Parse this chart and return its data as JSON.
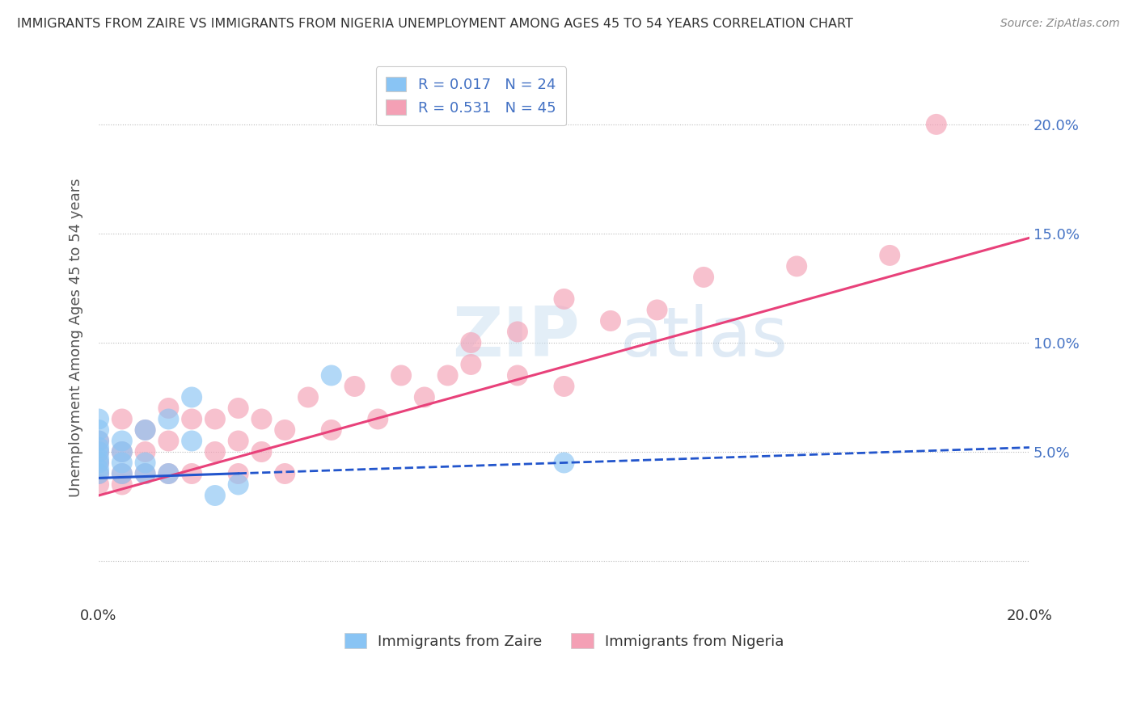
{
  "title": "IMMIGRANTS FROM ZAIRE VS IMMIGRANTS FROM NIGERIA UNEMPLOYMENT AMONG AGES 45 TO 54 YEARS CORRELATION CHART",
  "source": "Source: ZipAtlas.com",
  "ylabel": "Unemployment Among Ages 45 to 54 years",
  "xlim": [
    0.0,
    0.2
  ],
  "ylim": [
    -0.02,
    0.225
  ],
  "x_ticks": [
    0.0,
    0.05,
    0.1,
    0.15,
    0.2
  ],
  "x_tick_labels": [
    "0.0%",
    "",
    "",
    "",
    "20.0%"
  ],
  "y_ticks": [
    0.0,
    0.05,
    0.1,
    0.15,
    0.2
  ],
  "y_tick_labels_left": [
    "",
    "",
    "",
    "",
    ""
  ],
  "y_tick_labels_right": [
    "",
    "5.0%",
    "10.0%",
    "15.0%",
    "20.0%"
  ],
  "zaire_color": "#89c4f4",
  "nigeria_color": "#f4a0b5",
  "zaire_R": "0.017",
  "zaire_N": "24",
  "nigeria_R": "0.531",
  "nigeria_N": "45",
  "zaire_line_color": "#2255cc",
  "nigeria_line_color": "#e8417a",
  "watermark_zip": "ZIP",
  "watermark_atlas": "atlas",
  "zaire_scatter_x": [
    0.0,
    0.0,
    0.0,
    0.0,
    0.0,
    0.0,
    0.0,
    0.0,
    0.0,
    0.005,
    0.005,
    0.005,
    0.005,
    0.01,
    0.01,
    0.01,
    0.015,
    0.015,
    0.02,
    0.02,
    0.025,
    0.03,
    0.05,
    0.1
  ],
  "zaire_scatter_y": [
    0.04,
    0.042,
    0.045,
    0.047,
    0.05,
    0.052,
    0.055,
    0.06,
    0.065,
    0.04,
    0.045,
    0.05,
    0.055,
    0.04,
    0.045,
    0.06,
    0.04,
    0.065,
    0.055,
    0.075,
    0.03,
    0.035,
    0.085,
    0.045
  ],
  "nigeria_scatter_x": [
    0.0,
    0.0,
    0.0,
    0.0,
    0.0,
    0.005,
    0.005,
    0.005,
    0.005,
    0.01,
    0.01,
    0.01,
    0.015,
    0.015,
    0.015,
    0.02,
    0.02,
    0.025,
    0.025,
    0.03,
    0.03,
    0.03,
    0.035,
    0.035,
    0.04,
    0.04,
    0.045,
    0.05,
    0.055,
    0.06,
    0.065,
    0.07,
    0.075,
    0.08,
    0.08,
    0.09,
    0.09,
    0.1,
    0.1,
    0.11,
    0.12,
    0.13,
    0.15,
    0.17,
    0.18
  ],
  "nigeria_scatter_y": [
    0.035,
    0.04,
    0.045,
    0.05,
    0.055,
    0.035,
    0.04,
    0.05,
    0.065,
    0.04,
    0.05,
    0.06,
    0.04,
    0.055,
    0.07,
    0.04,
    0.065,
    0.05,
    0.065,
    0.04,
    0.055,
    0.07,
    0.05,
    0.065,
    0.04,
    0.06,
    0.075,
    0.06,
    0.08,
    0.065,
    0.085,
    0.075,
    0.085,
    0.09,
    0.1,
    0.085,
    0.105,
    0.08,
    0.12,
    0.11,
    0.115,
    0.13,
    0.135,
    0.14,
    0.2
  ],
  "zaire_line_x": [
    0.0,
    0.2
  ],
  "zaire_line_y": [
    0.038,
    0.052
  ],
  "nigeria_line_x": [
    0.0,
    0.2
  ],
  "nigeria_line_y": [
    0.03,
    0.148
  ]
}
